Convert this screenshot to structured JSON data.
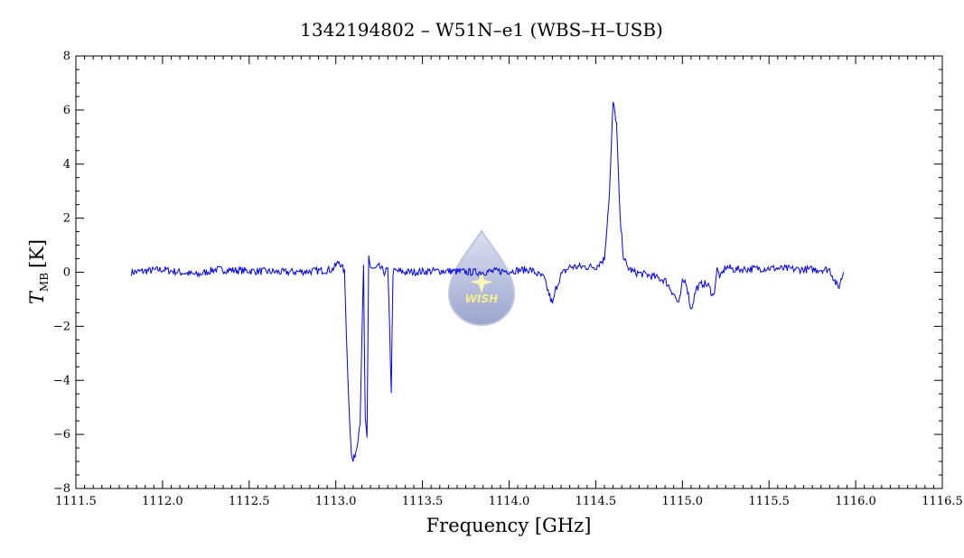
{
  "chart_data": {
    "type": "line",
    "title": "1342194802 – W51N–e1 (WBS–H–USB)",
    "xlabel": "Frequency [GHz]",
    "ylabel": {
      "main": "T",
      "sub": "MB",
      "unit": "[K]"
    },
    "xlim": [
      1111.5,
      1116.5
    ],
    "ylim": [
      -8,
      8
    ],
    "x_ticks": [
      "1111.5",
      "1112.0",
      "1112.5",
      "1113.0",
      "1113.5",
      "1114.0",
      "1114.5",
      "1115.0",
      "1115.5",
      "1116.0",
      "1116.5"
    ],
    "y_ticks": [
      "−8",
      "−6",
      "−4",
      "−2",
      "0",
      "2",
      "4",
      "6",
      "8"
    ],
    "grid": false,
    "legend": "none",
    "series": [
      {
        "color": "#0000ee",
        "x": [
          1111.82,
          1112.0,
          1112.2,
          1112.3,
          1112.5,
          1112.7,
          1112.9,
          1112.98,
          1113.02,
          1113.05,
          1113.07,
          1113.09,
          1113.1,
          1113.12,
          1113.14,
          1113.16,
          1113.17,
          1113.18,
          1113.19,
          1113.2,
          1113.22,
          1113.25,
          1113.28,
          1113.3,
          1113.31,
          1113.32,
          1113.33,
          1113.34,
          1113.4,
          1113.6,
          1113.8,
          1114.0,
          1114.12,
          1114.2,
          1114.25,
          1114.27,
          1114.3,
          1114.35,
          1114.5,
          1114.55,
          1114.58,
          1114.6,
          1114.62,
          1114.64,
          1114.66,
          1114.68,
          1114.72,
          1114.8,
          1114.9,
          1114.95,
          1114.98,
          1115.0,
          1115.02,
          1115.05,
          1115.08,
          1115.12,
          1115.15,
          1115.18,
          1115.2,
          1115.22,
          1115.25,
          1115.3,
          1115.5,
          1115.7,
          1115.85,
          1115.9,
          1115.93
        ],
        "y": [
          0.0,
          0.1,
          -0.1,
          0.1,
          0.05,
          0.0,
          0.05,
          0.1,
          0.4,
          0.0,
          -4.0,
          -6.8,
          -7.0,
          -6.5,
          -5.5,
          0.2,
          -5.5,
          -6.2,
          0.6,
          0.2,
          0.1,
          0.2,
          0.0,
          0.1,
          -2.0,
          -4.4,
          0.0,
          0.05,
          0.0,
          0.05,
          0.0,
          0.05,
          0.1,
          -0.2,
          -1.2,
          -0.6,
          -0.1,
          0.2,
          0.2,
          0.5,
          3.0,
          6.3,
          5.5,
          2.0,
          0.6,
          0.2,
          0.0,
          -0.1,
          -0.3,
          -0.8,
          -1.2,
          -0.4,
          -0.3,
          -1.4,
          -0.6,
          -0.4,
          -0.5,
          -0.9,
          0.1,
          -0.2,
          0.2,
          0.1,
          0.15,
          0.1,
          0.1,
          -0.6,
          0.0
        ]
      }
    ]
  },
  "watermark": {
    "label": "WISH",
    "icon": "water-drop-icon"
  }
}
